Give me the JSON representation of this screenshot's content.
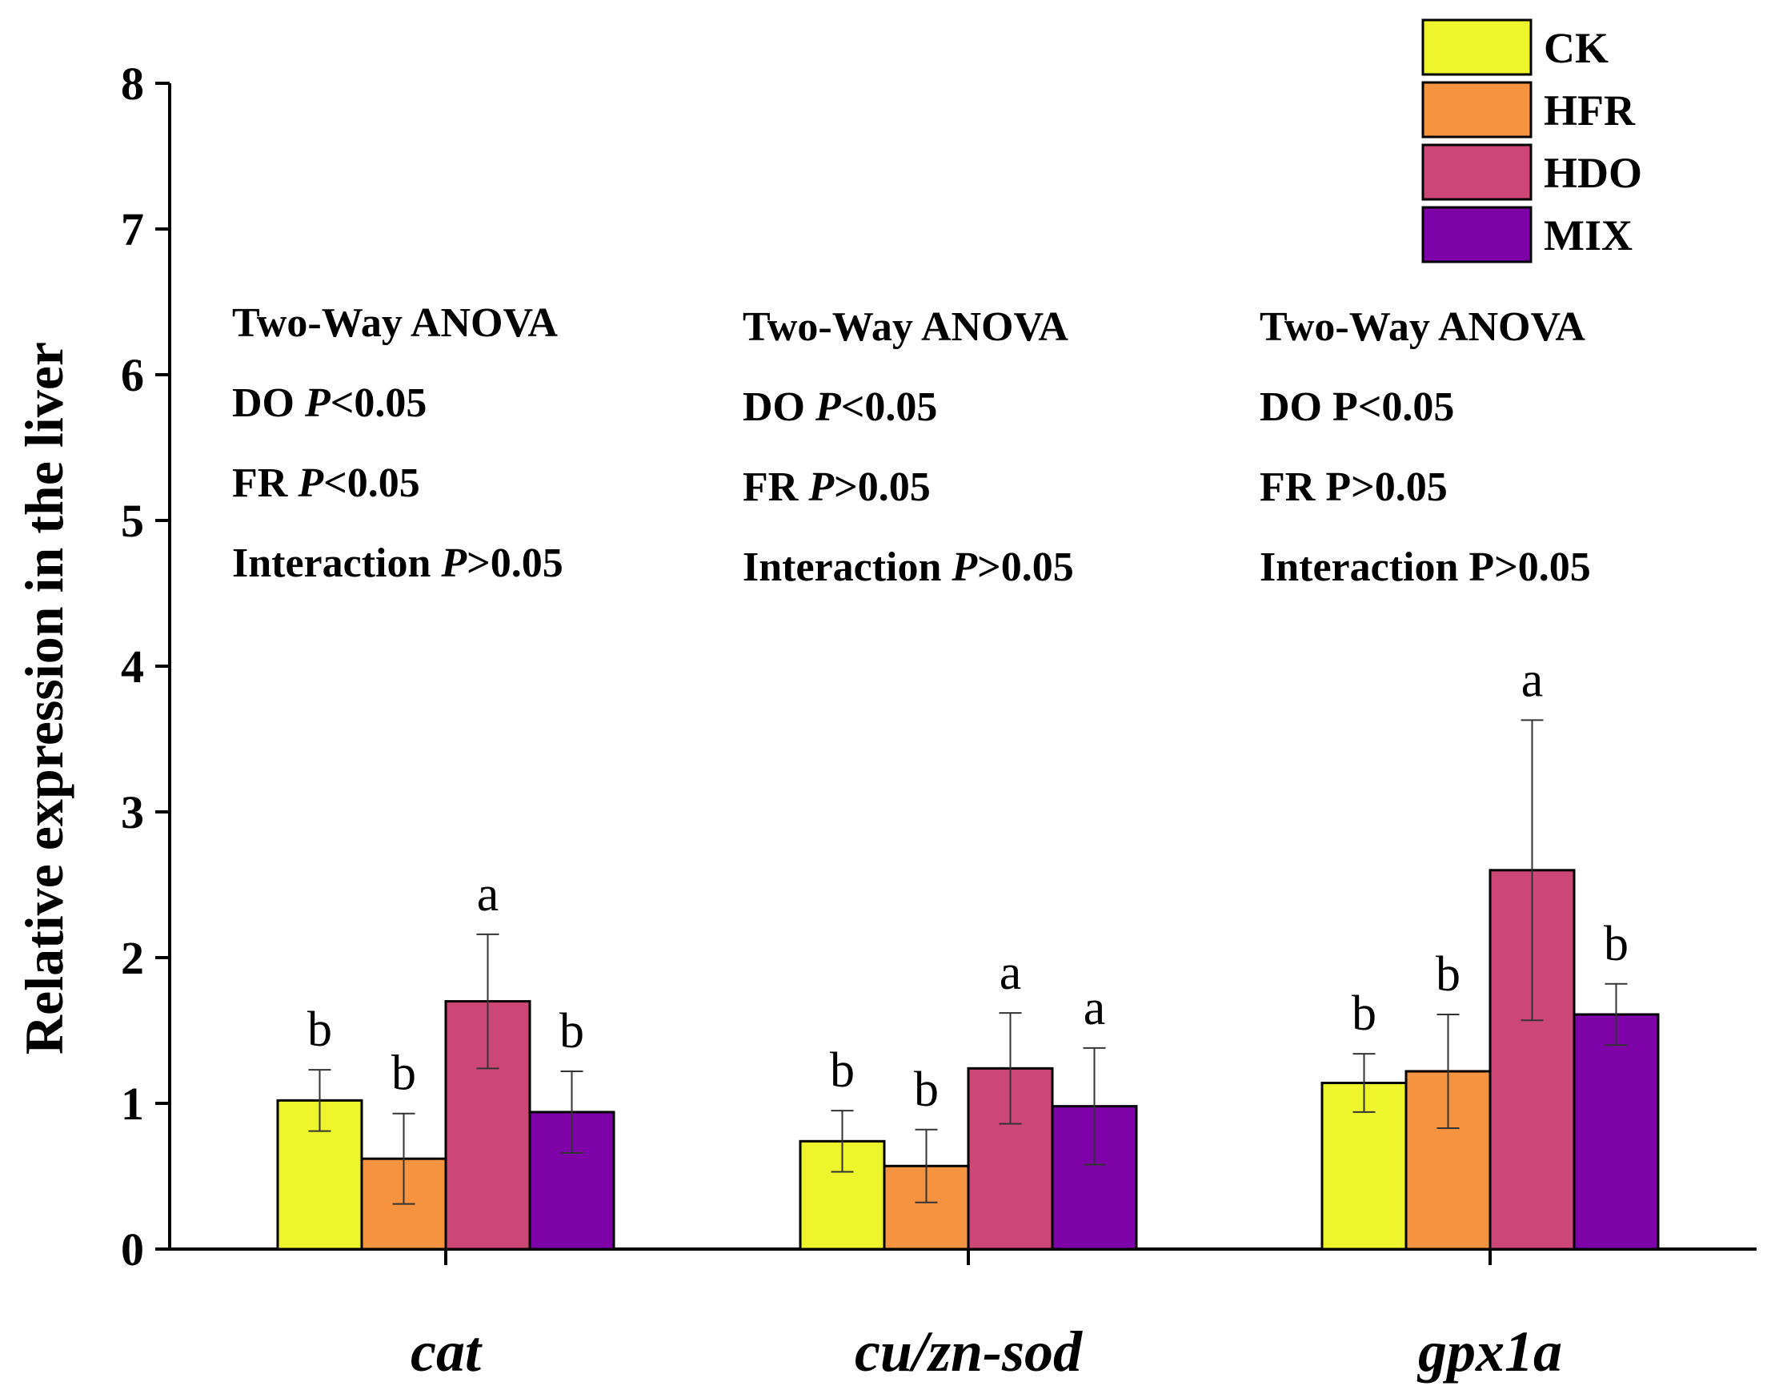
{
  "chart_data": {
    "type": "bar",
    "ylabel": "Relative expression in the liver",
    "ylim": [
      0,
      8
    ],
    "yticks": [
      0,
      1,
      2,
      3,
      4,
      5,
      6,
      7,
      8
    ],
    "grid": false,
    "legend_position": "top-right",
    "categories": [
      "cat",
      "cu/zn-sod",
      "gpx1a"
    ],
    "series": [
      {
        "name": "CK",
        "color": "#eef52d",
        "values": [
          1.02,
          0.74,
          1.14
        ],
        "errors": [
          0.21,
          0.21,
          0.2
        ],
        "letters": [
          "b",
          "b",
          "b"
        ]
      },
      {
        "name": "HFR",
        "color": "#f59340",
        "values": [
          0.62,
          0.57,
          1.22
        ],
        "errors": [
          0.31,
          0.25,
          0.39
        ],
        "letters": [
          "b",
          "b",
          "b"
        ]
      },
      {
        "name": "HDO",
        "color": "#cc4775",
        "values": [
          1.7,
          1.24,
          2.6
        ],
        "errors": [
          0.46,
          0.38,
          1.03
        ],
        "letters": [
          "a",
          "a",
          "a"
        ]
      },
      {
        "name": "MIX",
        "color": "#7d03a8",
        "values": [
          0.94,
          0.98,
          1.61
        ],
        "errors": [
          0.28,
          0.4,
          0.21
        ],
        "letters": [
          "b",
          "a",
          "b"
        ]
      }
    ],
    "annotations": [
      {
        "group": "cat",
        "title": "Two-Way ANOVA",
        "lines": [
          {
            "label": "DO",
            "italic_p": true,
            "p": "P",
            "rel": "<0.05"
          },
          {
            "label": "FR",
            "italic_p": true,
            "p": "P",
            "rel": "<0.05"
          },
          {
            "label": "Interaction",
            "italic_p": true,
            "p": "P",
            "rel": ">0.05"
          }
        ]
      },
      {
        "group": "cu/zn-sod",
        "title": "Two-Way ANOVA",
        "lines": [
          {
            "label": "DO",
            "italic_p": true,
            "p": "P",
            "rel": "<0.05"
          },
          {
            "label": "FR",
            "italic_p": true,
            "p": "P",
            "rel": ">0.05"
          },
          {
            "label": "Interaction",
            "italic_p": true,
            "p": "P",
            "rel": ">0.05"
          }
        ]
      },
      {
        "group": "gpx1a",
        "title": "Two-Way ANOVA",
        "lines": [
          {
            "label": "DO",
            "italic_p": false,
            "p": "P",
            "rel": "<0.05"
          },
          {
            "label": "FR",
            "italic_p": false,
            "p": "P",
            "rel": ">0.05"
          },
          {
            "label": "Interaction",
            "italic_p": false,
            "p": "P",
            "rel": ">0.05"
          }
        ]
      }
    ]
  }
}
